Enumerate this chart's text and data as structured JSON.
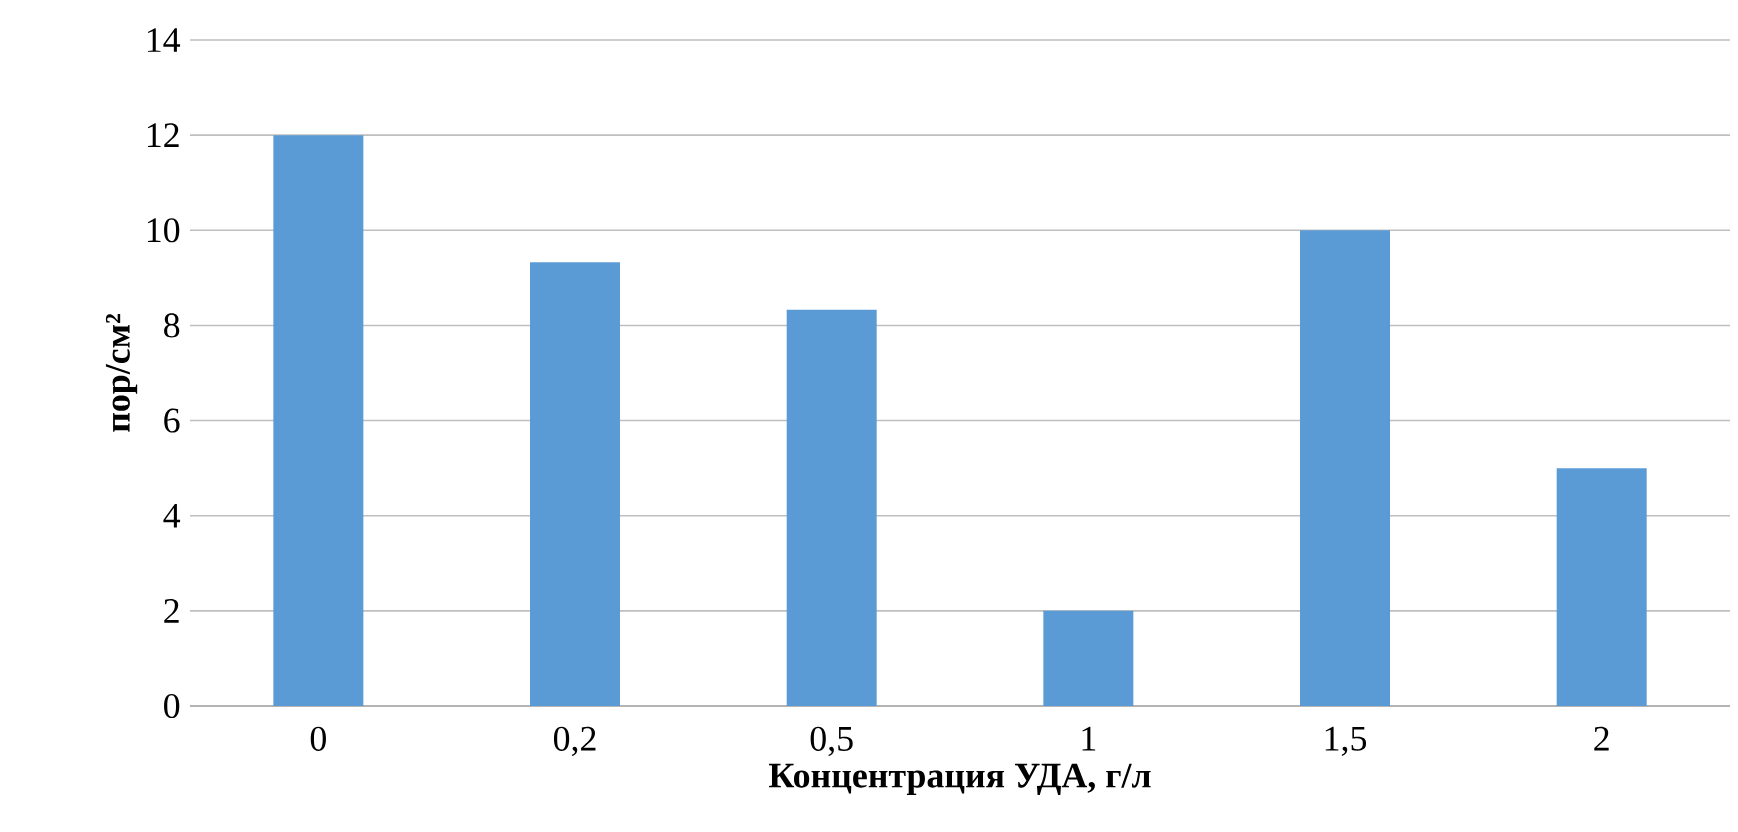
{
  "chart_data": {
    "type": "bar",
    "xlabel": "Концентрация УДА, г/л",
    "ylabel": "пор/см²",
    "categories": [
      "0",
      "0,2",
      "0,5",
      "1",
      "1,5",
      "2"
    ],
    "values": [
      12,
      9.33,
      8.33,
      2,
      10,
      5
    ],
    "color": "#5b9bd5",
    "ylim": [
      0,
      14
    ],
    "yticks": [
      0,
      2,
      4,
      6,
      8,
      10,
      12,
      14
    ],
    "grid": "y"
  }
}
